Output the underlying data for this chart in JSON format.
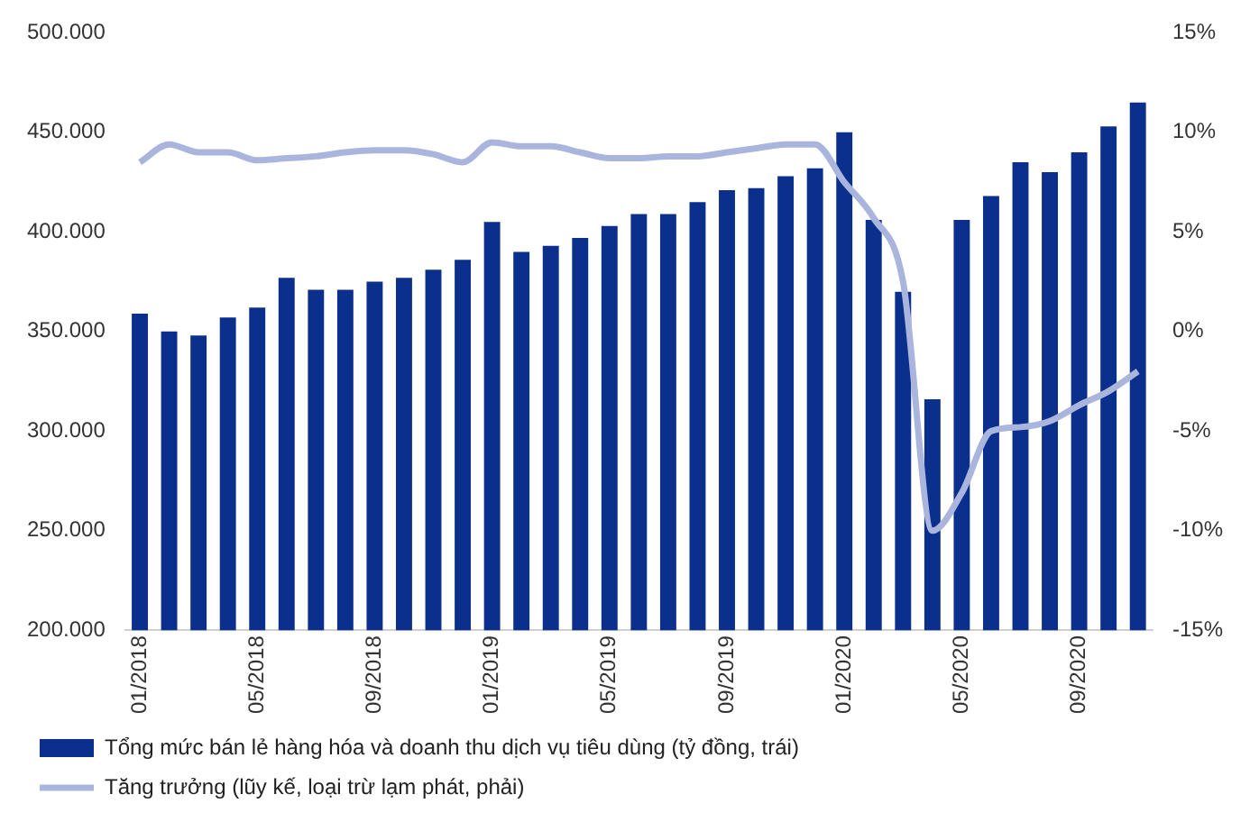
{
  "chart_data": {
    "type": "bar",
    "categories": [
      "01/2018",
      null,
      null,
      null,
      "05/2018",
      null,
      null,
      null,
      "09/2018",
      null,
      null,
      null,
      "01/2019",
      null,
      null,
      null,
      "05/2019",
      null,
      null,
      null,
      "09/2019",
      null,
      null,
      null,
      "01/2020",
      null,
      null,
      null,
      "05/2020",
      null,
      null,
      null,
      "09/2020",
      null,
      null
    ],
    "series": [
      {
        "name": "Tổng mức bán lẻ hàng hóa và doanh thu dịch vụ tiêu dùng (tỷ đồng, trái)",
        "color": "#0b2f8c",
        "values": [
          359000,
          350000,
          348000,
          357000,
          362000,
          377000,
          371000,
          371000,
          375000,
          377000,
          381000,
          386000,
          405000,
          390000,
          393000,
          397000,
          403000,
          409000,
          409000,
          415000,
          421000,
          422000,
          428000,
          432000,
          450000,
          406000,
          370000,
          316000,
          406000,
          418000,
          435000,
          430000,
          440000,
          453000,
          465000
        ]
      },
      {
        "name": "Tăng trưởng (lũy kế, loại trừ lạm phát, phải)",
        "type": "line",
        "axis": "y2",
        "color": "#a9b5dd",
        "values": [
          8.5,
          9.4,
          9.0,
          9.0,
          8.6,
          8.7,
          8.8,
          9.0,
          9.1,
          9.1,
          8.9,
          8.5,
          9.5,
          9.3,
          9.3,
          9.0,
          8.7,
          8.7,
          8.8,
          8.8,
          9.0,
          9.2,
          9.4,
          9.4,
          7.5,
          5.7,
          2.5,
          -10.0,
          -8.1,
          -5.0,
          -4.8,
          -4.5,
          -3.7,
          -3.0,
          -2.0
        ]
      }
    ],
    "ylim": [
      200000,
      500000
    ],
    "yticks": [
      {
        "value": 200000,
        "label": "200.000"
      },
      {
        "value": 250000,
        "label": "250.000"
      },
      {
        "value": 300000,
        "label": "300.000"
      },
      {
        "value": 350000,
        "label": "350.000"
      },
      {
        "value": 400000,
        "label": "400.000"
      },
      {
        "value": 450000,
        "label": "450.000"
      },
      {
        "value": 500000,
        "label": "500.000"
      }
    ],
    "y2lim": [
      -15,
      15
    ],
    "y2ticks": [
      {
        "value": -15,
        "label": "-15%"
      },
      {
        "value": -10,
        "label": "-10%"
      },
      {
        "value": -5,
        "label": "-5%"
      },
      {
        "value": 0,
        "label": "0%"
      },
      {
        "value": 5,
        "label": "5%"
      },
      {
        "value": 10,
        "label": "10%"
      },
      {
        "value": 15,
        "label": "15%"
      }
    ],
    "grid": false,
    "legend": "bottom"
  }
}
